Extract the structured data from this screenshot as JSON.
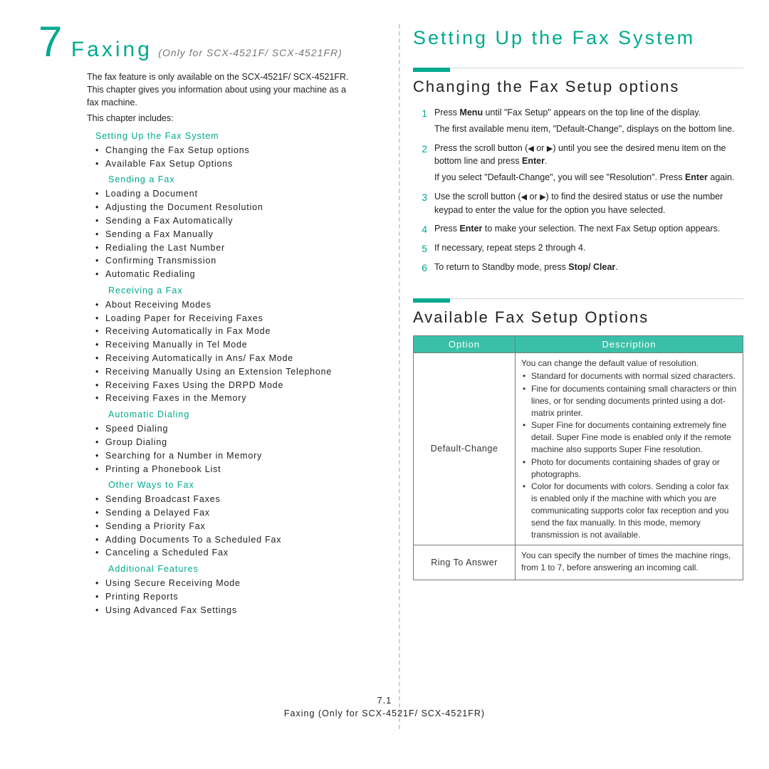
{
  "chapter": {
    "num": "7",
    "title": "Faxing",
    "subtitle": "(Only for SCX-4521F/ SCX-4521FR)",
    "intro1": "The fax feature is only available on the SCX-4521F/ SCX-4521FR. This chapter gives you information about using your machine as a fax machine.",
    "intro2": "This chapter includes:"
  },
  "toc": [
    {
      "group": "Setting Up the Fax System",
      "items": [
        "Changing the Fax Setup options",
        "Available Fax Setup Options"
      ]
    },
    {
      "group": "Sending a Fax",
      "indent": true,
      "items": [
        "Loading a Document",
        "Adjusting the Document Resolution",
        "Sending a Fax Automatically",
        "Sending a Fax Manually",
        "Redialing the Last Number",
        "Confirming Transmission",
        "Automatic Redialing"
      ]
    },
    {
      "group": "Receiving a Fax",
      "indent": true,
      "items": [
        "About Receiving Modes",
        "Loading Paper for Receiving Faxes",
        "Receiving Automatically in Fax Mode",
        "Receiving Manually in Tel Mode",
        "Receiving Automatically in Ans/ Fax Mode",
        "Receiving Manually Using an Extension Telephone",
        "Receiving Faxes Using the DRPD Mode",
        "Receiving Faxes in the Memory"
      ]
    },
    {
      "group": "Automatic Dialing",
      "indent": true,
      "items": [
        "Speed Dialing",
        "Group Dialing",
        "Searching for a Number in Memory",
        "Printing a Phonebook List"
      ]
    },
    {
      "group": "Other Ways to Fax",
      "indent": true,
      "items": [
        "Sending Broadcast Faxes",
        "Sending a Delayed Fax",
        "Sending a Priority Fax",
        "Adding Documents To a Scheduled Fax",
        "Canceling a Scheduled Fax"
      ]
    },
    {
      "group": "Additional Features",
      "indent": true,
      "items": [
        "Using Secure Receiving Mode",
        "Printing Reports",
        "Using Advanced Fax Settings"
      ]
    }
  ],
  "rightHeading": "Setting Up the Fax System",
  "sec1": {
    "title": "Changing the Fax Setup options",
    "steps": [
      {
        "n": "1",
        "lines": [
          "Press <b>Menu</b> until \"Fax Setup\" appears on the top line of the display.",
          "The first available menu item, \"Default-Change\", displays on the bottom line."
        ]
      },
      {
        "n": "2",
        "lines": [
          "Press the scroll button (<tri>◀</tri> or <tri>▶</tri>) until you see the desired menu item on the bottom line and press <b>Enter</b>.",
          "If you select \"Default-Change\", you will see \"Resolution\". Press <b>Enter</b> again."
        ]
      },
      {
        "n": "3",
        "lines": [
          "Use the scroll button (<tri>◀</tri> or <tri>▶</tri>) to find the desired status or use the number keypad to enter the value for the option you have selected."
        ]
      },
      {
        "n": "4",
        "lines": [
          "Press <b>Enter</b> to make your selection. The next Fax Setup option appears."
        ]
      },
      {
        "n": "5",
        "lines": [
          "If necessary, repeat steps 2 through 4."
        ]
      },
      {
        "n": "6",
        "lines": [
          "To return to Standby mode, press <b>Stop/ Clear</b>."
        ]
      }
    ]
  },
  "sec2": {
    "title": "Available Fax Setup Options",
    "thOption": "Option",
    "thDesc": "Description",
    "rows": [
      {
        "opt": "Default-Change",
        "lead": "You can change the default value of resolution.",
        "bullets": [
          "Standard for documents with normal sized characters.",
          "Fine for documents containing small characters or thin lines, or for sending documents printed using a dot-matrix printer.",
          "Super Fine for documents containing extremely fine detail. Super Fine mode is enabled only if the remote machine also supports Super Fine resolution.",
          "Photo for documents containing shades of gray or photographs.",
          "Color for documents with colors. Sending a color fax is enabled only if the machine with which you are communicating supports color fax reception and you send the fax manually. In this mode, memory transmission is not available."
        ]
      },
      {
        "opt": "Ring To Answer",
        "lead": "You can specify the number of times the machine rings, from 1 to 7, before answering an incoming call."
      }
    ]
  },
  "footer": {
    "pg": "7.1",
    "line": "Faxing (Only for SCX-4521F/ SCX-4521FR)"
  },
  "colors": {
    "accent": "#00a98f",
    "tableHeader": "#3ac0a8",
    "border": "#7a7a7a",
    "dash": "#bfd9d9"
  }
}
